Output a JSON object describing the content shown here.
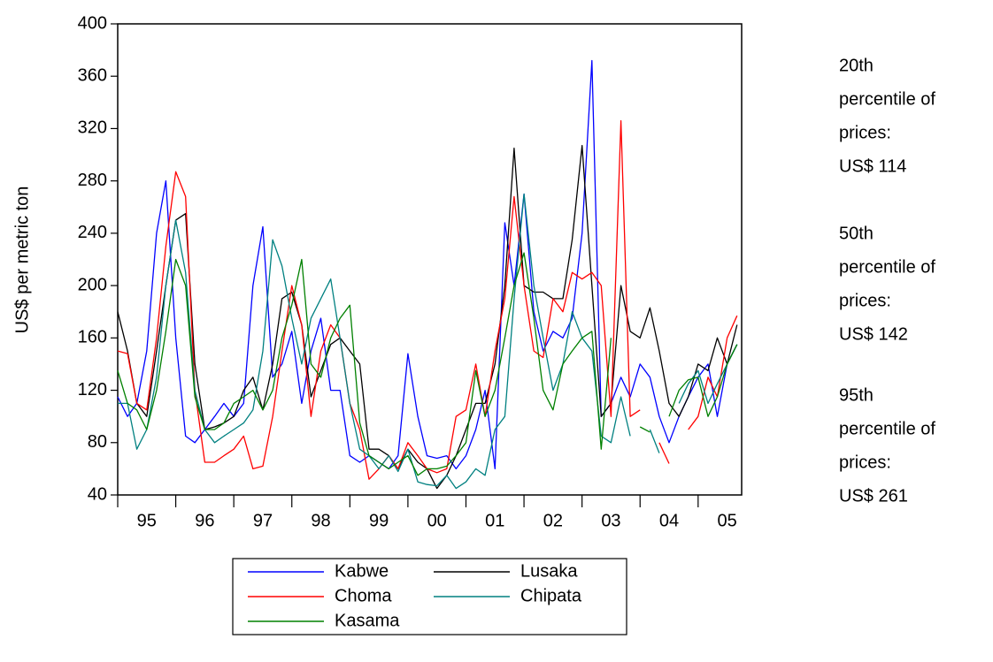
{
  "chart_data": {
    "type": "line",
    "y_label": "US$ per metric ton",
    "xlim": [
      1995,
      2005.75
    ],
    "xticks": [
      1995,
      1996,
      1997,
      1998,
      1999,
      2000,
      2001,
      2002,
      2003,
      2004,
      2005
    ],
    "xtick_labels": [
      {
        "value": 1995.5,
        "label": "95"
      },
      {
        "value": 1996.5,
        "label": "96"
      },
      {
        "value": 1997.5,
        "label": "97"
      },
      {
        "value": 1998.5,
        "label": "98"
      },
      {
        "value": 1999.5,
        "label": "99"
      },
      {
        "value": 2000.5,
        "label": "00"
      },
      {
        "value": 2001.5,
        "label": "01"
      },
      {
        "value": 2002.5,
        "label": "02"
      },
      {
        "value": 2003.5,
        "label": "03"
      },
      {
        "value": 2004.5,
        "label": "04"
      },
      {
        "value": 2005.5,
        "label": "05"
      }
    ],
    "ylim": [
      40,
      400
    ],
    "yticks": [
      40,
      80,
      120,
      160,
      200,
      240,
      280,
      320,
      360,
      400
    ],
    "x": [
      1995,
      1995.17,
      1995.33,
      1995.5,
      1995.67,
      1995.83,
      1996,
      1996.17,
      1996.33,
      1996.5,
      1996.67,
      1996.83,
      1997,
      1997.17,
      1997.33,
      1997.5,
      1997.67,
      1997.83,
      1998,
      1998.17,
      1998.33,
      1998.5,
      1998.67,
      1998.83,
      1999,
      1999.17,
      1999.33,
      1999.5,
      1999.67,
      1999.83,
      2000,
      2000.17,
      2000.33,
      2000.5,
      2000.67,
      2000.83,
      2001,
      2001.17,
      2001.33,
      2001.5,
      2001.67,
      2001.83,
      2002,
      2002.17,
      2002.33,
      2002.5,
      2002.67,
      2002.83,
      2003,
      2003.17,
      2003.33,
      2003.5,
      2003.67,
      2003.83,
      2004,
      2004.17,
      2004.33,
      2004.5,
      2004.67,
      2004.83,
      2005,
      2005.17,
      2005.33,
      2005.5,
      2005.67
    ],
    "series": [
      {
        "name": "Kabwe",
        "color": "#0000ff",
        "values": [
          115,
          100,
          110,
          150,
          240,
          280,
          160,
          85,
          80,
          90,
          100,
          110,
          100,
          110,
          200,
          245,
          130,
          140,
          165,
          110,
          150,
          175,
          120,
          120,
          70,
          65,
          70,
          65,
          60,
          70,
          148,
          100,
          70,
          68,
          70,
          60,
          70,
          90,
          120,
          60,
          248,
          200,
          270,
          180,
          150,
          165,
          160,
          175,
          240,
          372,
          100,
          110,
          130,
          115,
          140,
          130,
          100,
          80,
          100,
          115,
          130,
          140,
          100,
          140,
          155
        ]
      },
      {
        "name": "Lusaka",
        "color": "#000000",
        "values": [
          180,
          150,
          110,
          100,
          150,
          200,
          250,
          255,
          140,
          90,
          92,
          95,
          100,
          120,
          130,
          105,
          140,
          190,
          195,
          170,
          115,
          135,
          155,
          160,
          150,
          140,
          75,
          75,
          70,
          60,
          75,
          65,
          60,
          45,
          55,
          70,
          90,
          110,
          110,
          140,
          200,
          305,
          200,
          195,
          195,
          190,
          190,
          235,
          307,
          200,
          100,
          110,
          200,
          165,
          160,
          183,
          150,
          110,
          100,
          115,
          140,
          135,
          160,
          140,
          170
        ]
      },
      {
        "name": "Choma",
        "color": "#ff0000",
        "values": [
          150,
          148,
          110,
          105,
          160,
          230,
          287,
          268,
          120,
          65,
          65,
          70,
          75,
          85,
          60,
          62,
          100,
          150,
          200,
          170,
          100,
          150,
          170,
          160,
          110,
          90,
          52,
          60,
          70,
          60,
          80,
          70,
          60,
          57,
          60,
          100,
          105,
          140,
          100,
          150,
          190,
          268,
          200,
          150,
          145,
          190,
          180,
          210,
          205,
          210,
          200,
          100,
          326,
          100,
          105,
          null,
          80,
          64,
          null,
          90,
          100,
          130,
          115,
          160,
          177
        ]
      },
      {
        "name": "Chipata",
        "color": "#008080",
        "values": [
          110,
          110,
          75,
          90,
          130,
          200,
          250,
          210,
          120,
          90,
          80,
          85,
          90,
          95,
          105,
          150,
          235,
          215,
          175,
          140,
          175,
          190,
          205,
          160,
          110,
          75,
          70,
          60,
          70,
          58,
          75,
          50,
          48,
          47,
          55,
          45,
          50,
          60,
          55,
          90,
          100,
          190,
          270,
          200,
          160,
          120,
          140,
          180,
          160,
          150,
          85,
          80,
          115,
          85,
          null,
          90,
          72,
          null,
          110,
          125,
          135,
          110,
          125,
          140,
          155
        ]
      },
      {
        "name": "Kasama",
        "color": "#008000",
        "values": [
          135,
          110,
          105,
          90,
          120,
          165,
          220,
          200,
          115,
          90,
          90,
          95,
          110,
          115,
          120,
          105,
          120,
          160,
          185,
          220,
          140,
          130,
          160,
          175,
          185,
          95,
          70,
          65,
          60,
          65,
          70,
          55,
          60,
          60,
          62,
          70,
          80,
          135,
          100,
          120,
          160,
          200,
          225,
          175,
          120,
          105,
          140,
          150,
          160,
          165,
          75,
          160,
          null,
          null,
          92,
          88,
          null,
          100,
          120,
          128,
          130,
          100,
          115,
          140,
          155
        ]
      }
    ],
    "annotations": [
      [
        "20th",
        "percentile of",
        "prices:",
        "US$ 114"
      ],
      [
        "50th",
        "percentile of",
        "prices:",
        "US$ 142"
      ],
      [
        "95th",
        "percentile of",
        "prices:",
        "US$ 261"
      ]
    ]
  }
}
